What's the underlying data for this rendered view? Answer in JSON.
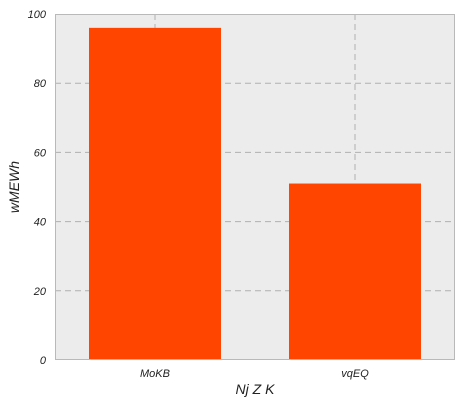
{
  "chart_data": {
    "type": "bar",
    "title": "",
    "xlabel": "Nj Z K",
    "ylabel": "wMEWh",
    "categories": [
      "MoKB",
      "vqEQ"
    ],
    "series": [
      {
        "values": [
          96,
          51
        ]
      }
    ],
    "ylim": [
      0,
      100
    ],
    "yticks": [
      "0",
      "20",
      "40",
      "60",
      "80",
      "100"
    ],
    "grid": true,
    "legend": "none",
    "colors": {
      "bar": "#ff4500",
      "plot_background": "#ececec",
      "grid": "#b0b0b0",
      "frame": "#b9b9b9"
    }
  }
}
